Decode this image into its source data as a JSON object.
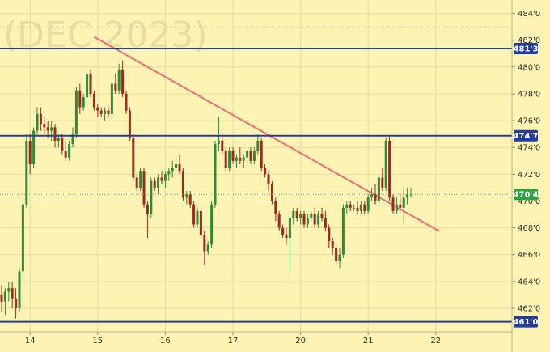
{
  "chart_data": {
    "type": "candlestick",
    "watermark": "(DEC 2023)",
    "ylim": [
      460.25,
      485.0
    ],
    "y_ticks": [
      {
        "v": 462.0,
        "label": "462'0"
      },
      {
        "v": 464.0,
        "label": "464'0"
      },
      {
        "v": 466.0,
        "label": "466'0"
      },
      {
        "v": 468.0,
        "label": "468'0"
      },
      {
        "v": 470.0,
        "label": "470'0"
      },
      {
        "v": 472.0,
        "label": "472'0"
      },
      {
        "v": 474.0,
        "label": "474'0"
      },
      {
        "v": 476.0,
        "label": "476'0"
      },
      {
        "v": 478.0,
        "label": "478'0"
      },
      {
        "v": 480.0,
        "label": "480'0"
      },
      {
        "v": 482.0,
        "label": "482'0"
      },
      {
        "v": 484.0,
        "label": "484'0"
      }
    ],
    "x_labels": [
      {
        "i": 8,
        "label": "14"
      },
      {
        "i": 27,
        "label": "15"
      },
      {
        "i": 46,
        "label": "16"
      },
      {
        "i": 65,
        "label": "17"
      },
      {
        "i": 84,
        "label": "20"
      },
      {
        "i": 103,
        "label": "21"
      },
      {
        "i": 122,
        "label": "22"
      }
    ],
    "levels": [
      {
        "value": 481.375,
        "label": "481'3",
        "color": "#1f3ca8"
      },
      {
        "value": 474.875,
        "label": "474'7",
        "color": "#1f3ca8"
      },
      {
        "value": 461.0,
        "label": "461'0",
        "color": "#1f3ca8"
      }
    ],
    "last_price": {
      "value": 470.5,
      "label": "470'4",
      "color": "#2f9e3e"
    },
    "trendline": {
      "from": {
        "i": 26,
        "v": 482.25
      },
      "to": {
        "i": 123,
        "v": 467.75
      },
      "color": "#f06b78"
    },
    "colors": {
      "up": "#2f8a3a",
      "down": "#9a2b1e",
      "grid": "#e6dba4",
      "dotgrid": "#cfc59a"
    },
    "candles": [
      [
        463.0,
        463.75,
        461.75,
        462.5
      ],
      [
        462.5,
        463.5,
        461.5,
        463.25
      ],
      [
        463.25,
        464.0,
        462.5,
        463.5
      ],
      [
        463.5,
        464.0,
        462.0,
        462.75
      ],
      [
        462.75,
        463.5,
        461.25,
        462.0
      ],
      [
        462.0,
        465.0,
        461.75,
        464.75
      ],
      [
        464.75,
        470.0,
        464.5,
        469.75
      ],
      [
        469.75,
        475.0,
        469.5,
        474.5
      ],
      [
        474.5,
        475.0,
        472.0,
        472.75
      ],
      [
        472.75,
        475.5,
        472.5,
        475.25
      ],
      [
        475.25,
        477.0,
        475.0,
        476.5
      ],
      [
        476.5,
        477.0,
        475.25,
        475.75
      ],
      [
        475.75,
        476.25,
        475.0,
        475.5
      ],
      [
        475.5,
        476.0,
        474.75,
        475.25
      ],
      [
        475.25,
        476.0,
        474.5,
        475.5
      ],
      [
        475.5,
        475.75,
        474.0,
        474.5
      ],
      [
        474.5,
        475.0,
        474.0,
        474.75
      ],
      [
        474.75,
        475.0,
        473.5,
        473.75
      ],
      [
        473.75,
        474.5,
        473.0,
        473.25
      ],
      [
        473.25,
        474.5,
        473.0,
        474.25
      ],
      [
        474.25,
        475.5,
        474.0,
        475.0
      ],
      [
        475.0,
        478.5,
        474.75,
        478.25
      ],
      [
        478.25,
        478.75,
        476.5,
        477.0
      ],
      [
        477.0,
        478.0,
        476.75,
        477.75
      ],
      [
        477.75,
        480.0,
        477.5,
        479.5
      ],
      [
        479.5,
        479.75,
        477.75,
        478.0
      ],
      [
        478.0,
        478.25,
        476.75,
        477.0
      ],
      [
        477.0,
        477.25,
        476.25,
        476.75
      ],
      [
        476.75,
        477.0,
        476.25,
        476.5
      ],
      [
        476.5,
        477.0,
        476.0,
        476.75
      ],
      [
        476.75,
        477.0,
        476.25,
        476.5
      ],
      [
        476.5,
        479.0,
        476.25,
        478.75
      ],
      [
        478.75,
        479.5,
        478.0,
        478.25
      ],
      [
        478.25,
        480.25,
        478.0,
        479.75
      ],
      [
        479.75,
        480.5,
        477.75,
        478.0
      ],
      [
        478.0,
        478.25,
        476.5,
        476.75
      ],
      [
        476.75,
        477.0,
        474.5,
        474.75
      ],
      [
        474.75,
        475.0,
        471.5,
        471.75
      ],
      [
        471.75,
        472.0,
        470.75,
        471.0
      ],
      [
        471.0,
        472.5,
        470.75,
        472.25
      ],
      [
        472.25,
        472.5,
        469.5,
        469.75
      ],
      [
        469.75,
        470.0,
        467.25,
        469.0
      ],
      [
        469.0,
        471.75,
        468.75,
        471.5
      ],
      [
        471.5,
        471.75,
        470.75,
        471.0
      ],
      [
        471.0,
        472.0,
        470.5,
        471.75
      ],
      [
        471.75,
        472.25,
        471.25,
        471.5
      ],
      [
        471.5,
        472.25,
        471.0,
        472.0
      ],
      [
        472.0,
        472.5,
        471.5,
        472.25
      ],
      [
        472.25,
        473.0,
        471.75,
        472.5
      ],
      [
        472.5,
        473.5,
        472.25,
        472.75
      ],
      [
        472.75,
        473.5,
        472.0,
        472.25
      ],
      [
        472.25,
        472.5,
        470.0,
        470.25
      ],
      [
        470.25,
        470.75,
        469.75,
        470.5
      ],
      [
        470.5,
        470.75,
        469.5,
        469.75
      ],
      [
        469.75,
        470.0,
        468.0,
        468.25
      ],
      [
        468.25,
        469.5,
        468.0,
        469.25
      ],
      [
        469.25,
        469.5,
        467.25,
        467.5
      ],
      [
        467.5,
        467.75,
        465.25,
        466.25
      ],
      [
        466.25,
        467.0,
        466.0,
        466.75
      ],
      [
        466.75,
        470.0,
        466.5,
        469.75
      ],
      [
        469.75,
        474.5,
        469.5,
        474.25
      ],
      [
        474.25,
        476.25,
        473.75,
        474.5
      ],
      [
        474.5,
        475.0,
        473.5,
        473.75
      ],
      [
        473.75,
        474.0,
        472.25,
        472.5
      ],
      [
        472.5,
        474.0,
        472.25,
        473.75
      ],
      [
        473.75,
        474.0,
        472.75,
        473.0
      ],
      [
        473.0,
        473.5,
        472.5,
        473.25
      ],
      [
        473.25,
        474.0,
        472.75,
        473.0
      ],
      [
        473.0,
        473.5,
        472.5,
        473.25
      ],
      [
        473.25,
        474.0,
        472.75,
        473.75
      ],
      [
        473.75,
        474.0,
        472.75,
        473.0
      ],
      [
        473.0,
        474.0,
        472.75,
        473.75
      ],
      [
        473.75,
        475.0,
        473.5,
        474.5
      ],
      [
        474.5,
        474.75,
        472.25,
        472.5
      ],
      [
        472.5,
        472.75,
        471.75,
        472.0
      ],
      [
        472.0,
        472.25,
        470.75,
        471.25
      ],
      [
        471.25,
        471.5,
        469.75,
        470.0
      ],
      [
        470.0,
        470.25,
        468.5,
        469.0
      ],
      [
        469.0,
        469.25,
        467.75,
        468.0
      ],
      [
        468.0,
        468.25,
        467.25,
        467.5
      ],
      [
        467.5,
        468.0,
        466.75,
        467.25
      ],
      [
        467.25,
        469.0,
        464.5,
        468.75
      ],
      [
        468.75,
        469.5,
        468.25,
        469.25
      ],
      [
        469.25,
        469.5,
        468.5,
        468.75
      ],
      [
        468.75,
        469.25,
        468.25,
        469.0
      ],
      [
        469.0,
        469.25,
        468.0,
        468.25
      ],
      [
        468.25,
        469.0,
        468.0,
        468.75
      ],
      [
        468.75,
        469.25,
        468.5,
        469.0
      ],
      [
        469.0,
        469.5,
        468.0,
        468.25
      ],
      [
        468.25,
        469.25,
        468.0,
        469.0
      ],
      [
        469.0,
        469.5,
        468.5,
        468.75
      ],
      [
        468.75,
        469.25,
        467.75,
        468.0
      ],
      [
        468.0,
        468.25,
        466.5,
        467.0
      ],
      [
        467.0,
        467.25,
        466.0,
        466.5
      ],
      [
        466.5,
        466.75,
        465.25,
        465.5
      ],
      [
        465.5,
        466.5,
        465.0,
        466.0
      ],
      [
        466.0,
        469.75,
        465.75,
        469.5
      ],
      [
        469.5,
        470.0,
        469.0,
        469.75
      ],
      [
        469.75,
        470.0,
        469.25,
        469.5
      ],
      [
        469.5,
        469.75,
        469.25,
        469.5
      ],
      [
        469.5,
        470.0,
        469.0,
        469.25
      ],
      [
        469.25,
        470.0,
        469.0,
        469.75
      ],
      [
        469.75,
        470.0,
        469.0,
        469.25
      ],
      [
        469.25,
        470.5,
        469.0,
        470.25
      ],
      [
        470.25,
        471.0,
        470.0,
        470.5
      ],
      [
        470.5,
        471.25,
        469.75,
        470.0
      ],
      [
        470.0,
        472.0,
        469.75,
        471.75
      ],
      [
        471.75,
        472.5,
        470.75,
        471.0
      ],
      [
        471.0,
        474.75,
        470.75,
        474.5
      ],
      [
        474.5,
        474.875,
        470.0,
        470.25
      ],
      [
        470.25,
        470.5,
        469.0,
        469.25
      ],
      [
        469.25,
        470.25,
        469.0,
        469.75
      ],
      [
        469.75,
        470.5,
        469.25,
        469.5
      ],
      [
        469.5,
        471.0,
        468.25,
        470.25
      ],
      [
        470.25,
        471.0,
        469.75,
        470.5
      ],
      [
        470.5,
        471.0,
        470.25,
        470.5
      ]
    ]
  }
}
